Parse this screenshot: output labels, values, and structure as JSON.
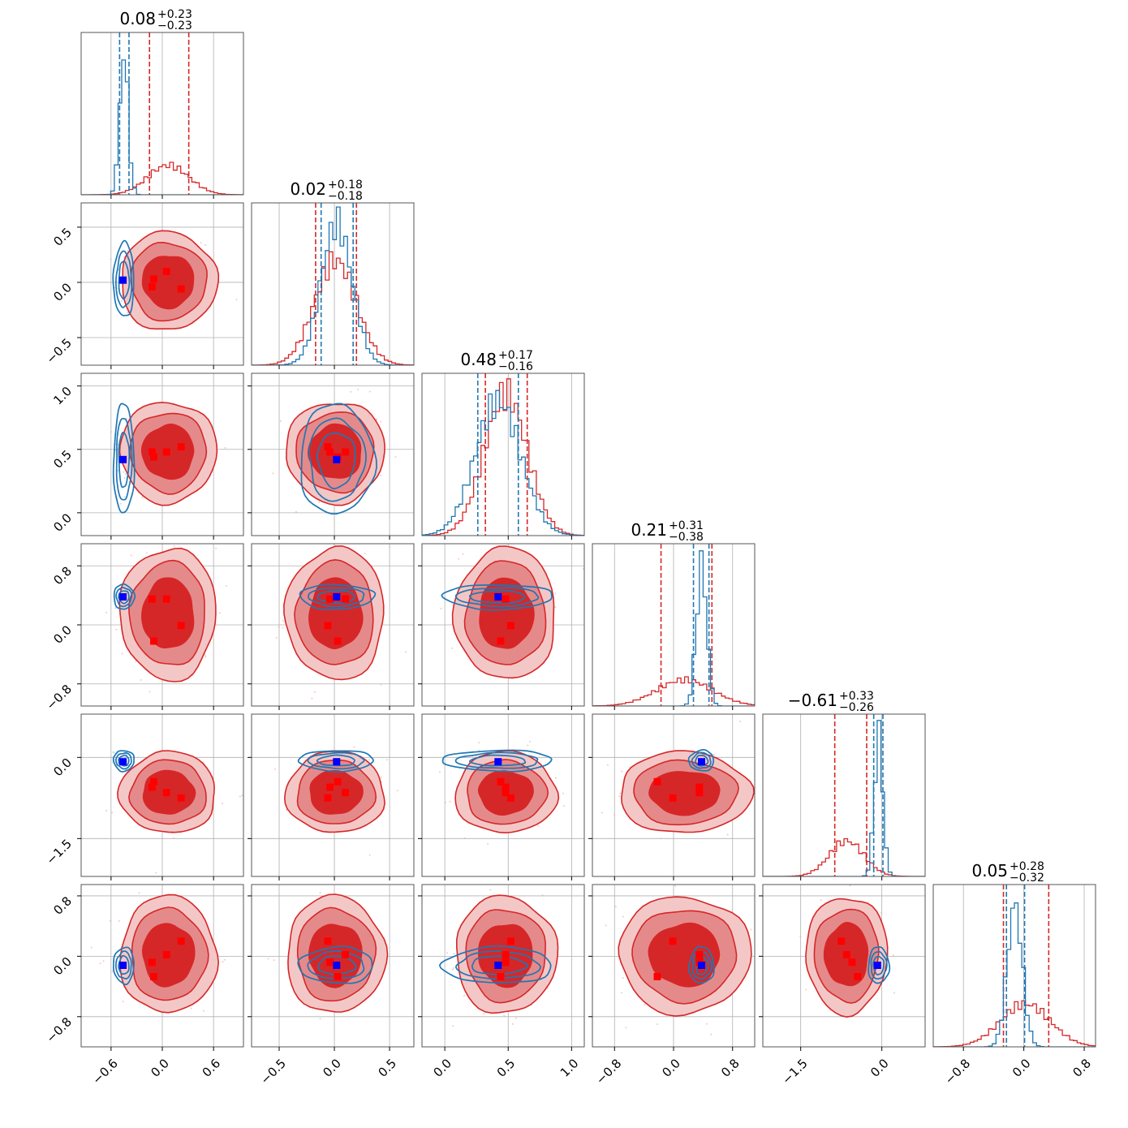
{
  "colors": {
    "sample_a": "#d62728",
    "sample_a_mid": "#e58a8b",
    "sample_a_light": "#f4c7c7",
    "sample_b": "#1f77b4",
    "marker_a": "#ff0000",
    "marker_b": "#0000ff",
    "grid": "#b0b0b0",
    "frame": "#555555"
  },
  "chart_data": {
    "type": "corner",
    "n_params": 6,
    "grid": true,
    "titles": [
      {
        "value": "0.08",
        "plus": "+0.23",
        "minus": "−0.23"
      },
      {
        "value": "0.02",
        "plus": "+0.18",
        "minus": "−0.18"
      },
      {
        "value": "0.48",
        "plus": "+0.17",
        "minus": "−0.16"
      },
      {
        "value": "0.21",
        "plus": "+0.31",
        "minus": "−0.38"
      },
      {
        "value": "−0.61",
        "plus": "+0.33",
        "minus": "−0.26"
      },
      {
        "value": "0.05",
        "plus": "+0.28",
        "minus": "−0.32"
      }
    ],
    "axes": [
      {
        "range": [
          -0.95,
          0.95
        ],
        "ticks": [
          -0.6,
          0.0,
          0.6
        ],
        "tick_labels": [
          "−0.6",
          "0.0",
          "0.6"
        ]
      },
      {
        "range": [
          -0.75,
          0.72
        ],
        "ticks": [
          -0.5,
          0.0,
          0.5
        ],
        "tick_labels": [
          "−0.5",
          "0.0",
          "0.5"
        ]
      },
      {
        "range": [
          -0.18,
          1.1
        ],
        "ticks": [
          0.0,
          0.5,
          1.0
        ],
        "tick_labels": [
          "0.0",
          "0.5",
          "1.0"
        ]
      },
      {
        "range": [
          -1.1,
          1.1
        ],
        "ticks": [
          -0.8,
          0.0,
          0.8
        ],
        "tick_labels": [
          "−0.8",
          "0.0",
          "0.8"
        ]
      },
      {
        "range": [
          -2.2,
          0.8
        ],
        "ticks": [
          -1.5,
          0.0
        ],
        "tick_labels": [
          "−1.5",
          "0.0"
        ]
      },
      {
        "range": [
          -1.2,
          0.95
        ],
        "ticks": [
          -0.8,
          0.0,
          0.8
        ],
        "tick_labels": [
          "−0.8",
          "0.0",
          "0.8"
        ]
      }
    ],
    "series": [
      {
        "id": "red",
        "mean": [
          0.07,
          0.01,
          0.48,
          0.15,
          -0.65,
          0.02
        ],
        "std": [
          0.24,
          0.19,
          0.17,
          0.38,
          0.32,
          0.33
        ],
        "quantiles": [
          [
            -0.15,
            0.31
          ],
          [
            -0.17,
            0.2
          ],
          [
            0.32,
            0.65
          ],
          [
            -0.17,
            0.52
          ],
          [
            -0.87,
            -0.28
          ],
          [
            -0.27,
            0.33
          ]
        ],
        "markers": [
          [
            -0.12,
            -0.04,
            0.48,
            0.35,
            -0.55,
            -0.08
          ],
          [
            0.05,
            0.1,
            0.48,
            0.35,
            -0.65,
            0.02
          ],
          [
            -0.1,
            0.03,
            0.44,
            -0.22,
            -0.45,
            -0.27
          ],
          [
            0.22,
            -0.06,
            0.52,
            -0.01,
            -0.75,
            0.2
          ]
        ]
      },
      {
        "id": "blue",
        "mean": [
          -0.45,
          0.02,
          0.42,
          0.38,
          -0.06,
          -0.12
        ],
        "std": [
          0.05,
          0.14,
          0.18,
          0.07,
          0.08,
          0.1
        ],
        "quantiles": [
          [
            -0.5,
            -0.39
          ],
          [
            -0.12,
            0.17
          ],
          [
            0.26,
            0.58
          ],
          [
            0.27,
            0.48
          ],
          [
            -0.15,
            0.02
          ],
          [
            -0.23,
            0.01
          ]
        ],
        "markers": [
          [
            -0.46,
            0.02,
            0.42,
            0.38,
            -0.08,
            -0.12
          ]
        ]
      }
    ]
  }
}
